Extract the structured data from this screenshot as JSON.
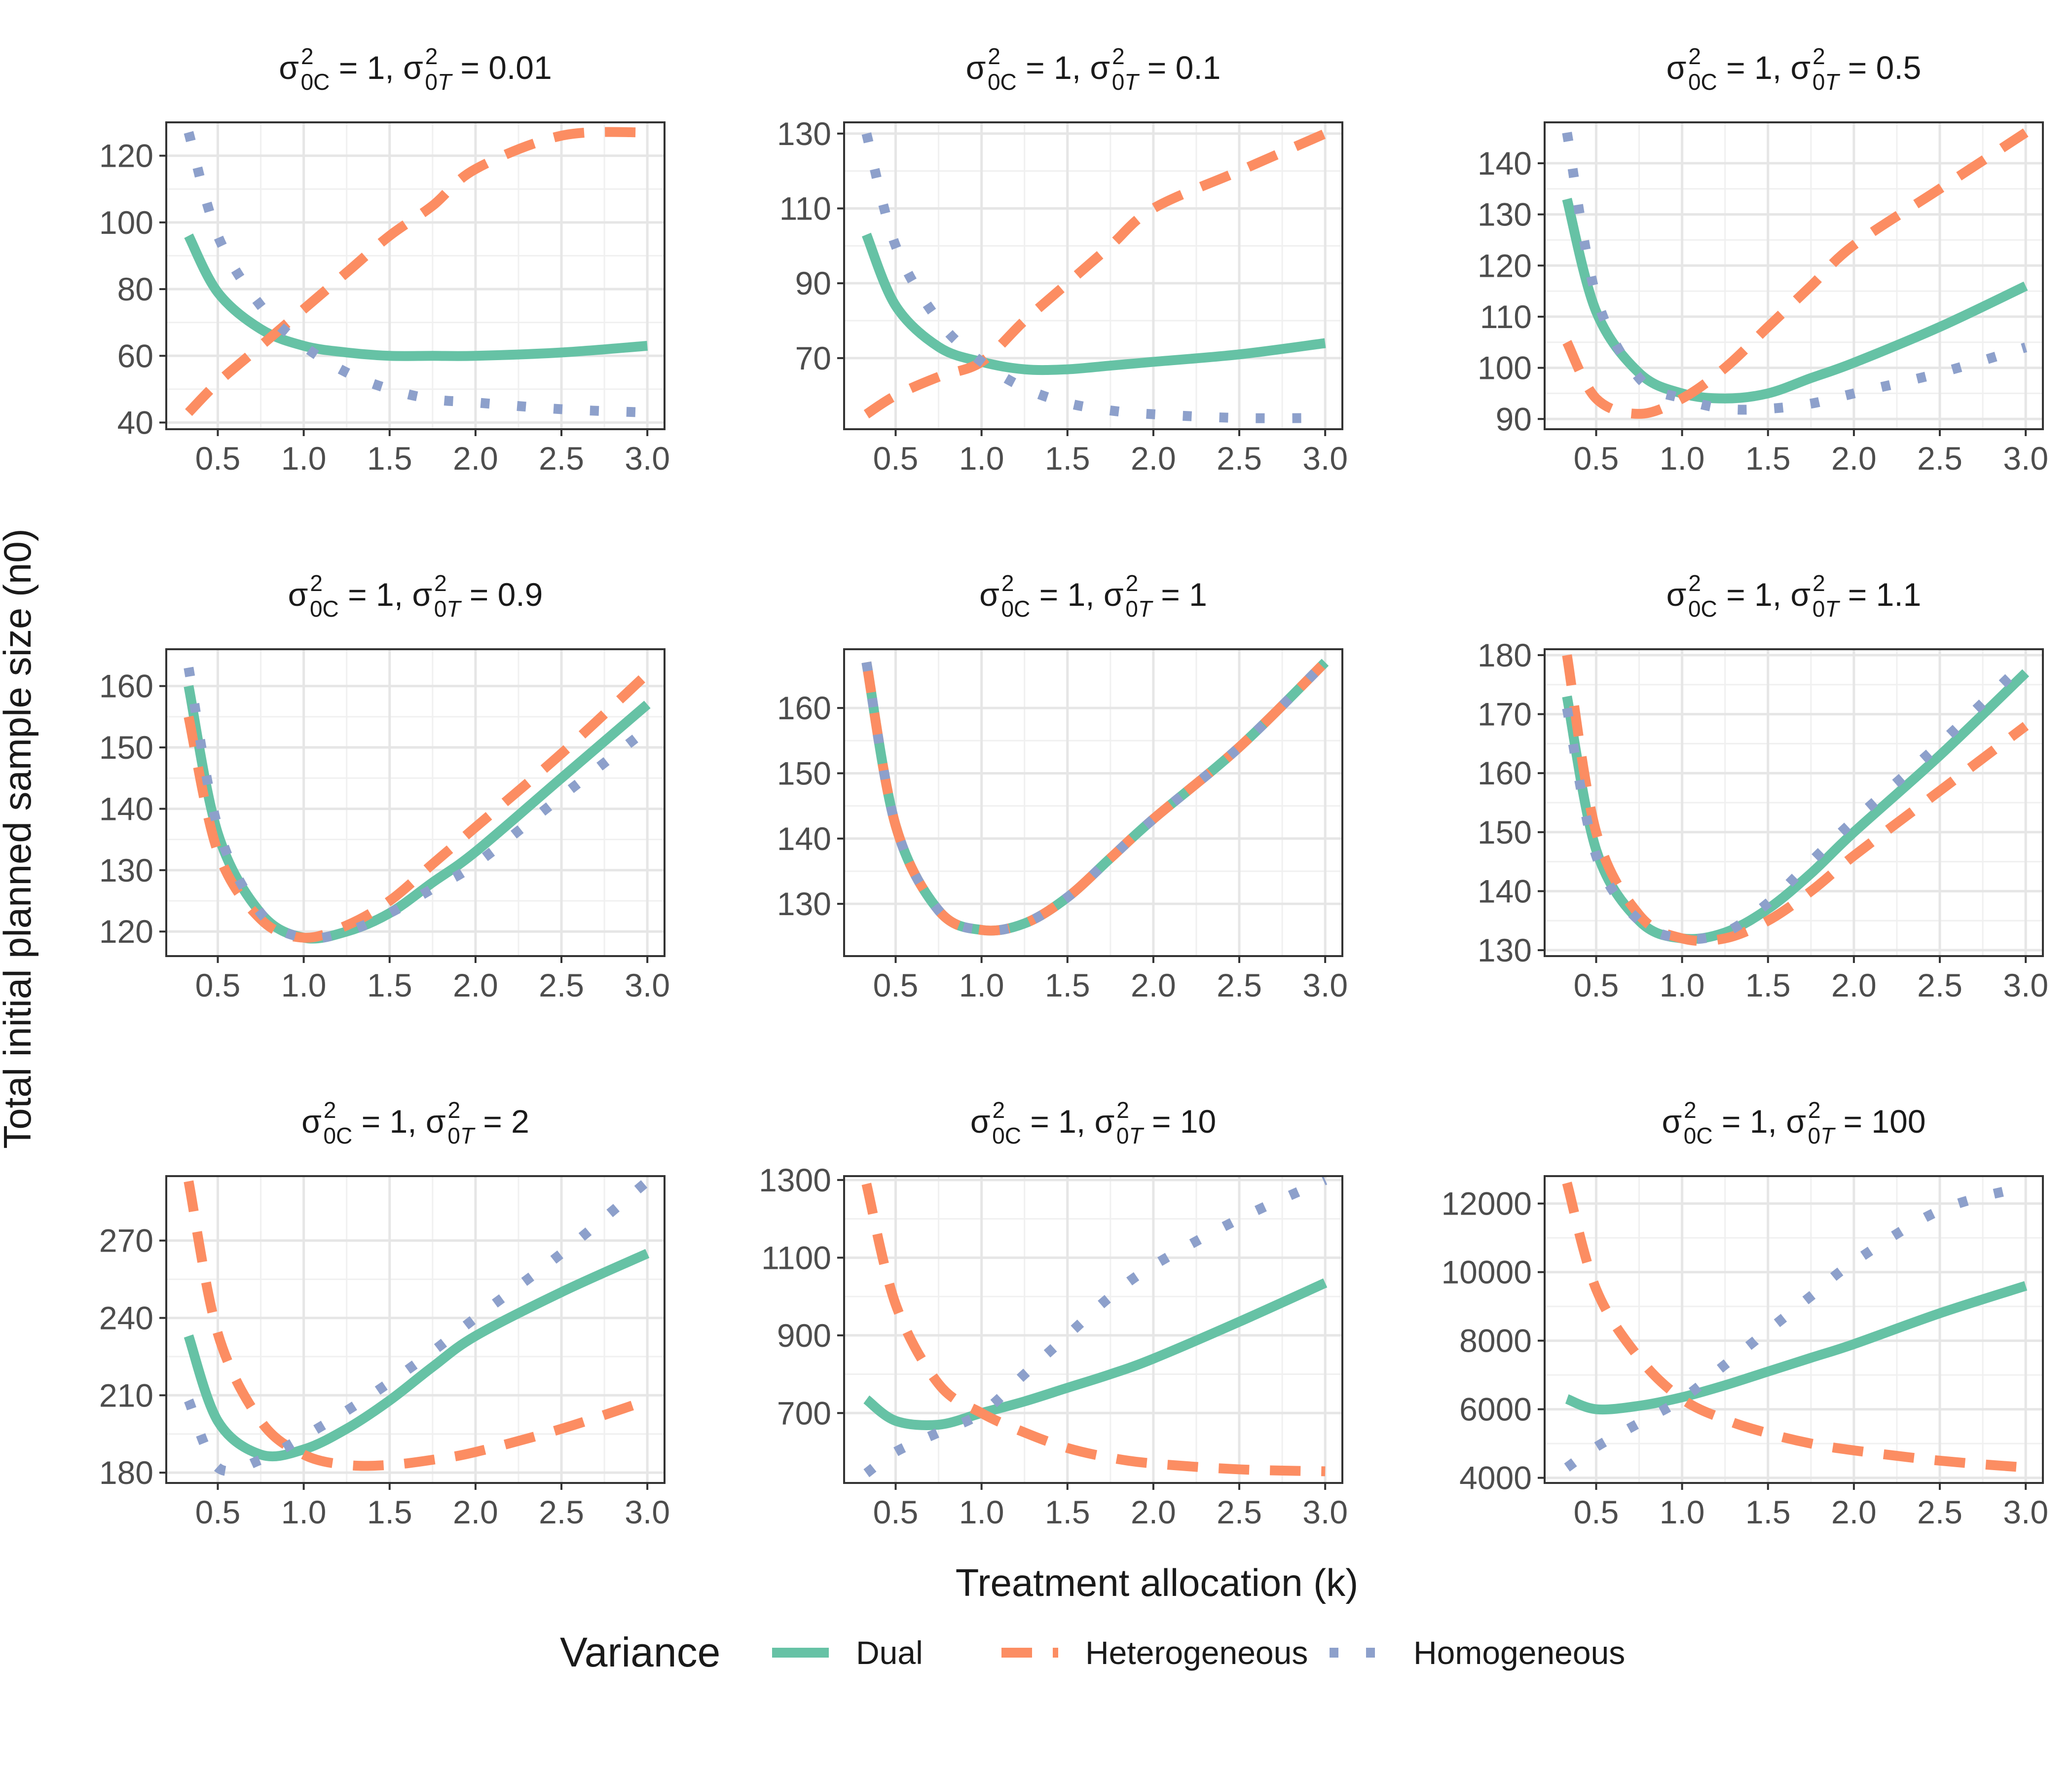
{
  "chart_data": {
    "type": "line",
    "xlabel": "Treatment allocation (k)",
    "ylabel": "Total initial planned sample size (n0)",
    "legend": {
      "title": "Variance",
      "position": "bottom",
      "entries": [
        "Dual",
        "Heterogeneous",
        "Homogeneous"
      ]
    },
    "colors": {
      "Dual": "#66c2a5",
      "Heterogeneous": "#fc8d62",
      "Homogeneous": "#8da0cb"
    },
    "line_styles": {
      "Dual": "solid",
      "Heterogeneous": "dashed",
      "Homogeneous": "dotted"
    },
    "grid": true,
    "x_ticks": [
      "0.5",
      "1.0",
      "1.5",
      "2.0",
      "2.5",
      "3.0"
    ],
    "x": [
      0.33,
      0.5,
      0.75,
      1.0,
      1.25,
      1.5,
      1.75,
      2.0,
      2.5,
      3.0
    ],
    "panels": [
      {
        "title": "σ²0C = 1, σ²0T = 0.01",
        "sigma_0C": "1",
        "sigma_0T": "0.01",
        "xlim": [
          0.2,
          3.1
        ],
        "ylim": [
          38,
          130
        ],
        "y_ticks": [
          40,
          60,
          80,
          100,
          120
        ],
        "series": [
          {
            "name": "Dual",
            "values": [
              96,
              79,
              68,
              63,
              61,
              60,
              60,
              60,
              61,
              63
            ]
          },
          {
            "name": "Heterogeneous",
            "values": [
              43,
              52,
              63,
              74,
              85,
              96,
              105,
              116,
              126,
              127
            ]
          },
          {
            "name": "Homogeneous",
            "values": [
              127,
              96,
              75,
              63,
              55,
              50,
              47,
              46,
              44,
              43
            ]
          }
        ]
      },
      {
        "title": "σ²0C = 1, σ²0T = 0.1",
        "sigma_0C": "1",
        "sigma_0T": "0.1",
        "xlim": [
          0.2,
          3.1
        ],
        "ylim": [
          51,
          133
        ],
        "y_ticks": [
          70,
          90,
          110,
          130
        ],
        "series": [
          {
            "name": "Dual",
            "values": [
              103,
              84,
              73,
              69,
              67,
              67,
              68,
              69,
              71,
              74
            ]
          },
          {
            "name": "Heterogeneous",
            "values": [
              55,
              60,
              65,
              69,
              80,
              90,
              100,
              110,
              120,
              130
            ]
          },
          {
            "name": "Homogeneous",
            "values": [
              130,
              100,
              80,
              69,
              62,
              58,
              56,
              55,
              54,
              54
            ]
          }
        ]
      },
      {
        "title": "σ²0C = 1, σ²0T = 0.5",
        "sigma_0C": "1",
        "sigma_0T": "0.5",
        "xlim": [
          0.2,
          3.1
        ],
        "ylim": [
          88,
          148
        ],
        "y_ticks": [
          90,
          100,
          110,
          120,
          130,
          140
        ],
        "series": [
          {
            "name": "Dual",
            "values": [
              133,
              111,
              99,
              95,
              94,
              95,
              98,
              101,
              108,
              116
            ]
          },
          {
            "name": "Heterogeneous",
            "values": [
              105,
              94,
              91,
              94,
              100,
              108,
              116,
              124,
              135,
              146
            ]
          },
          {
            "name": "Homogeneous",
            "values": [
              146,
              114,
              98,
              94,
              92,
              92,
              93,
              95,
              99,
              104
            ]
          }
        ]
      },
      {
        "title": "σ²0C = 1, σ²0T = 0.9",
        "sigma_0C": "1",
        "sigma_0T": "0.9",
        "xlim": [
          0.2,
          3.1
        ],
        "ylim": [
          116,
          166
        ],
        "y_ticks": [
          120,
          130,
          140,
          150,
          160
        ],
        "series": [
          {
            "name": "Dual",
            "values": [
              160,
              136,
              123,
              119,
              120,
              123,
              128,
              133,
              145,
              157
            ]
          },
          {
            "name": "Heterogeneous",
            "values": [
              155,
              133,
              122,
              119,
              121,
              125,
              131,
              137,
              149,
              162
            ]
          },
          {
            "name": "Homogeneous",
            "values": [
              163,
              137,
              123,
              119,
              120,
              123,
              127,
              131,
              142,
              153
            ]
          }
        ]
      },
      {
        "title": "σ²0C = 1, σ²0T = 1",
        "sigma_0C": "1",
        "sigma_0T": "1",
        "xlim": [
          0.2,
          3.1
        ],
        "ylim": [
          122,
          169
        ],
        "y_ticks": [
          130,
          140,
          150,
          160
        ],
        "series": [
          {
            "name": "Dual",
            "values": [
              167,
              142,
              129,
              126,
              127,
              131,
              137,
              143,
              154,
              167
            ]
          },
          {
            "name": "Heterogeneous",
            "values": [
              167,
              142,
              129,
              126,
              127,
              131,
              137,
              143,
              154,
              167
            ]
          },
          {
            "name": "Homogeneous",
            "values": [
              167,
              142,
              129,
              126,
              127,
              131,
              137,
              143,
              154,
              167
            ]
          }
        ]
      },
      {
        "title": "σ²0C = 1, σ²0T = 1.1",
        "sigma_0C": "1",
        "sigma_0T": "1.1",
        "xlim": [
          0.2,
          3.1
        ],
        "ylim": [
          129,
          181
        ],
        "y_ticks": [
          130,
          140,
          150,
          160,
          170,
          180
        ],
        "series": [
          {
            "name": "Dual",
            "values": [
              173,
              147,
              135,
              132,
              133,
              137,
              143,
              150,
              163,
              177
            ]
          },
          {
            "name": "Heterogeneous",
            "values": [
              180,
              150,
              136,
              132,
              132,
              135,
              140,
              146,
              157,
              168
            ]
          },
          {
            "name": "Homogeneous",
            "values": [
              171,
              146,
              135,
              132,
              133,
              138,
              145,
              152,
              165,
              179
            ]
          }
        ]
      },
      {
        "title": "σ²0C = 1, σ²0T = 2",
        "sigma_0C": "1",
        "sigma_0T": "2",
        "xlim": [
          0.2,
          3.1
        ],
        "ylim": [
          176,
          295
        ],
        "y_ticks": [
          180,
          210,
          240,
          270
        ],
        "series": [
          {
            "name": "Dual",
            "values": [
              233,
              200,
              187,
              189,
              197,
              208,
              221,
              233,
              250,
              265
            ]
          },
          {
            "name": "Heterogeneous",
            "values": [
              293,
              234,
              200,
              187,
              183,
              183,
              185,
              188,
              197,
              208
            ]
          },
          {
            "name": "Homogeneous",
            "values": [
              208,
              182,
              185,
              194,
              204,
              215,
              227,
              240,
              265,
              293
            ]
          }
        ]
      },
      {
        "title": "σ²0C = 1, σ²0T = 10",
        "sigma_0C": "1",
        "sigma_0T": "10",
        "xlim": [
          0.2,
          3.1
        ],
        "ylim": [
          520,
          1310
        ],
        "y_ticks": [
          700,
          900,
          1100,
          1300
        ],
        "series": [
          {
            "name": "Dual",
            "values": [
              735,
              680,
              670,
              700,
              730,
              765,
              800,
              840,
              935,
              1035
            ]
          },
          {
            "name": "Heterogeneous",
            "values": [
              1290,
              980,
              775,
              700,
              650,
              610,
              585,
              570,
              555,
              550
            ]
          },
          {
            "name": "Homogeneous",
            "values": [
              545,
              600,
              650,
              700,
              800,
              900,
              1000,
              1080,
              1200,
              1300
            ]
          }
        ]
      },
      {
        "title": "σ²0C = 1, σ²0T = 100",
        "sigma_0C": "1",
        "sigma_0T": "100",
        "xlim": [
          0.2,
          3.1
        ],
        "ylim": [
          3850,
          12800
        ],
        "y_ticks": [
          4000,
          6000,
          8000,
          10000,
          12000
        ],
        "series": [
          {
            "name": "Dual",
            "values": [
              6300,
              6000,
              6100,
              6350,
              6700,
              7100,
              7500,
              7900,
              8800,
              9600
            ]
          },
          {
            "name": "Heterogeneous",
            "values": [
              12600,
              9500,
              7500,
              6300,
              5700,
              5300,
              5000,
              4800,
              4500,
              4300
            ]
          },
          {
            "name": "Homogeneous",
            "values": [
              4300,
              4900,
              5600,
              6300,
              7300,
              8300,
              9300,
              10300,
              11800,
              12500
            ]
          }
        ]
      }
    ]
  }
}
